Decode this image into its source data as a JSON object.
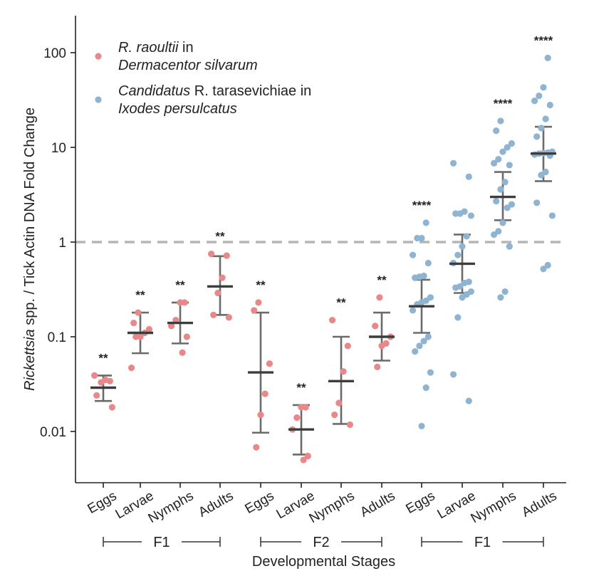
{
  "chart_data": {
    "type": "scatter",
    "y_scale": "log",
    "ylim": [
      0.003,
      250
    ],
    "xlabel": "Developmental Stages",
    "ylabel_italic": "Rickettsia",
    "ylabel_rest": " spp. / Tick Actin DNA Fold Change",
    "reference_line": 1,
    "y_ticks": [
      {
        "value": 0.01,
        "label": "0.01"
      },
      {
        "value": 0.1,
        "label": "0.1"
      },
      {
        "value": 1,
        "label": "1"
      },
      {
        "value": 10,
        "label": "10"
      },
      {
        "value": 100,
        "label": "100"
      }
    ],
    "categories": [
      "Eggs",
      "Larvae",
      "Nymphs",
      "Adults",
      "Eggs",
      "Larvae",
      "Nymphs",
      "Adults",
      "Eggs",
      "Larvae",
      "Nymphs",
      "Adults"
    ],
    "groups": [
      {
        "label": "F1",
        "from": 0,
        "to": 3
      },
      {
        "label": "F2",
        "from": 4,
        "to": 7
      },
      {
        "label": "F1",
        "from": 8,
        "to": 11
      }
    ],
    "legend": [
      {
        "color": "#e8888a",
        "line1_italic": "R. raoultii",
        "line1_rest": " in",
        "line2_italic": "Dermacentor silvarum"
      },
      {
        "color": "#8eb4d2",
        "line1_italic": "Candidatus",
        "line1_rest": " R. tarasevichiae in",
        "line2_italic": "Ixodes persulcatus"
      }
    ],
    "series": [
      {
        "name": "R. raoultii in Dermacentor silvarum",
        "color": "#e8888a",
        "category_indices": [
          0,
          1,
          2,
          3,
          4,
          5,
          6,
          7
        ]
      },
      {
        "name": "Candidatus R. tarasevichiae in Ixodes persulcatus",
        "color": "#8eb4d2",
        "category_indices": [
          8,
          9,
          10,
          11
        ]
      }
    ],
    "stages": [
      {
        "mean": 0.029,
        "lo": 0.021,
        "hi": 0.039,
        "sig": "**",
        "points": [
          0.039,
          0.034,
          0.035,
          0.033,
          0.024,
          0.018
        ]
      },
      {
        "mean": 0.11,
        "lo": 0.067,
        "hi": 0.18,
        "sig": "**",
        "points": [
          0.18,
          0.14,
          0.12,
          0.11,
          0.1,
          0.1,
          0.047
        ]
      },
      {
        "mean": 0.14,
        "lo": 0.085,
        "hi": 0.23,
        "sig": "**",
        "points": [
          0.23,
          0.23,
          0.15,
          0.13,
          0.1,
          0.068
        ]
      },
      {
        "mean": 0.34,
        "lo": 0.17,
        "hi": 0.71,
        "sig": "**",
        "points": [
          0.75,
          0.72,
          0.42,
          0.29,
          0.17,
          0.16
        ]
      },
      {
        "mean": 0.042,
        "lo": 0.0097,
        "hi": 0.18,
        "sig": "**",
        "points": [
          0.23,
          0.19,
          0.052,
          0.025,
          0.015,
          0.0068
        ]
      },
      {
        "mean": 0.0105,
        "lo": 0.0057,
        "hi": 0.019,
        "sig": "**",
        "points": [
          0.018,
          0.018,
          0.014,
          0.0105,
          0.0055,
          0.005
        ]
      },
      {
        "mean": 0.034,
        "lo": 0.012,
        "hi": 0.1,
        "sig": "**",
        "points": [
          0.15,
          0.08,
          0.043,
          0.02,
          0.015,
          0.0118
        ]
      },
      {
        "mean": 0.1,
        "lo": 0.056,
        "hi": 0.18,
        "sig": "**",
        "points": [
          0.26,
          0.13,
          0.1,
          0.085,
          0.08,
          0.048
        ]
      },
      {
        "mean": 0.21,
        "lo": 0.11,
        "hi": 0.4,
        "sig": "****",
        "points": [
          1.6,
          1.1,
          1.1,
          0.73,
          0.6,
          0.44,
          0.43,
          0.42,
          0.26,
          0.24,
          0.23,
          0.22,
          0.19,
          0.1,
          0.09,
          0.08,
          0.07,
          0.042,
          0.029,
          0.0114
        ]
      },
      {
        "mean": 0.59,
        "lo": 0.29,
        "hi": 1.2,
        "sig": "",
        "points": [
          6.8,
          4.9,
          2.1,
          2.0,
          2.0,
          1.9,
          1.15,
          0.9,
          0.73,
          0.6,
          0.38,
          0.37,
          0.34,
          0.33,
          0.3,
          0.28,
          0.26,
          0.16,
          0.04,
          0.021
        ]
      },
      {
        "mean": 3.0,
        "lo": 1.7,
        "hi": 5.5,
        "sig": "****",
        "points": [
          19,
          15,
          11,
          10,
          9,
          7.5,
          6.8,
          6.5,
          4.3,
          3.6,
          2.7,
          2.5,
          2.3,
          1.6,
          1.3,
          1.2,
          0.9,
          0.3,
          0.26
        ]
      },
      {
        "mean": 8.6,
        "lo": 4.4,
        "hi": 16.5,
        "sig": "****",
        "points": [
          88,
          43,
          35,
          31,
          28,
          20,
          16,
          13,
          9,
          8.8,
          8.7,
          8.6,
          8.4,
          8.2,
          5.5,
          5.1,
          2.6,
          1.9,
          0.57,
          0.52
        ]
      }
    ]
  }
}
